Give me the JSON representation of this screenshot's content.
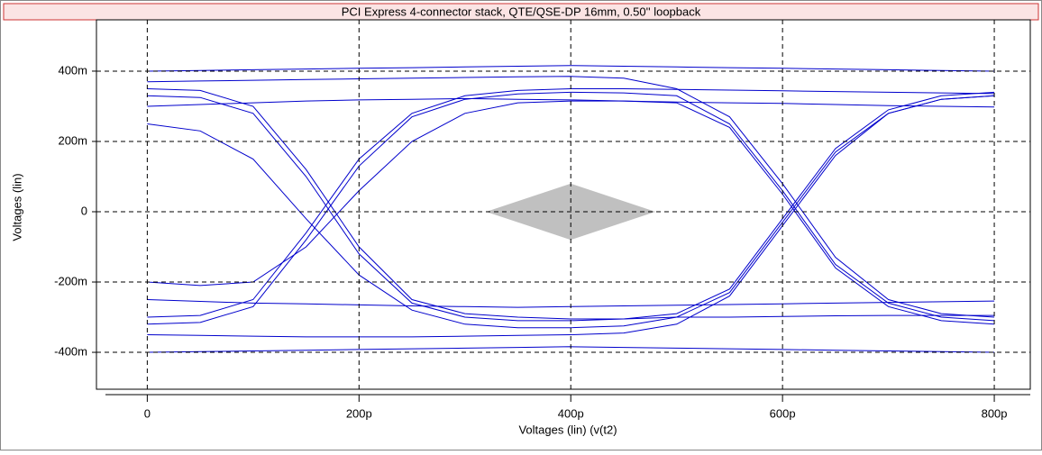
{
  "chart_data": {
    "type": "eye",
    "title": "PCI Express 4-connector stack, QTE/QSE-DP 16mm, 0.50'' loopback",
    "x_label": "Voltages (lin) (v(t2)",
    "y_label": "Voltages (lin)",
    "xlim": [
      -48,
      834
    ],
    "ylim": [
      -505,
      546
    ],
    "xticks": [
      {
        "value": 0,
        "label": "0"
      },
      {
        "value": 200,
        "label": "200p"
      },
      {
        "value": 400,
        "label": "400p"
      },
      {
        "value": 600,
        "label": "600p"
      },
      {
        "value": 800,
        "label": "800p"
      }
    ],
    "yticks": [
      {
        "value": 400,
        "label": "400m"
      },
      {
        "value": 200,
        "label": "200m"
      },
      {
        "value": 0,
        "label": "0"
      },
      {
        "value": -200,
        "label": "-200m"
      },
      {
        "value": -400,
        "label": "-400m"
      }
    ],
    "grid": true,
    "x": [
      0,
      50,
      100,
      150,
      200,
      250,
      300,
      350,
      400,
      450,
      500,
      550,
      600,
      650,
      700,
      750,
      800
    ],
    "series": [
      {
        "color": "#0000cc",
        "values": [
          400,
          402,
          404,
          406,
          408,
          410,
          412,
          414,
          416,
          414,
          412,
          410,
          408,
          406,
          404,
          402,
          400
        ]
      },
      {
        "color": "#0000cc",
        "values": [
          300,
          305,
          310,
          315,
          318,
          320,
          322,
          320,
          318,
          315,
          312,
          310,
          308,
          305,
          302,
          300,
          298
        ]
      },
      {
        "color": "#0000cc",
        "values": [
          350,
          345,
          300,
          120,
          -100,
          -250,
          -290,
          -300,
          -305,
          -305,
          -300,
          -300,
          -298,
          -296,
          -295,
          -295,
          -295
        ]
      },
      {
        "color": "#0000cc",
        "values": [
          -300,
          -295,
          -250,
          -60,
          150,
          280,
          330,
          345,
          350,
          350,
          348,
          346,
          344,
          342,
          340,
          338,
          336
        ]
      },
      {
        "color": "#0000cc",
        "values": [
          330,
          325,
          280,
          100,
          -120,
          -260,
          -300,
          -310,
          -310,
          -305,
          -290,
          -220,
          -20,
          180,
          290,
          330,
          340
        ]
      },
      {
        "color": "#0000cc",
        "values": [
          -320,
          -315,
          -270,
          -80,
          130,
          270,
          320,
          335,
          340,
          338,
          330,
          250,
          60,
          -150,
          -260,
          -300,
          -310
        ]
      },
      {
        "color": "#0000cc",
        "values": [
          370,
          372,
          374,
          376,
          378,
          380,
          382,
          384,
          385,
          380,
          350,
          270,
          80,
          -130,
          -250,
          -290,
          -300
        ]
      },
      {
        "color": "#0000cc",
        "values": [
          -350,
          -352,
          -354,
          -356,
          -356,
          -356,
          -354,
          -352,
          -350,
          -345,
          -320,
          -240,
          -40,
          160,
          280,
          320,
          330
        ]
      },
      {
        "color": "#0000cc",
        "values": [
          -400,
          -398,
          -396,
          -394,
          -392,
          -390,
          -388,
          -386,
          -384,
          -386,
          -388,
          -390,
          -392,
          -394,
          -396,
          -398,
          -400
        ]
      },
      {
        "color": "#0000cc",
        "values": [
          -250,
          -255,
          -260,
          -262,
          -265,
          -268,
          -270,
          -272,
          -270,
          -268,
          -266,
          -264,
          -262,
          -260,
          -258,
          -256,
          -254
        ]
      },
      {
        "color": "#0000cc",
        "values": [
          250,
          230,
          150,
          -20,
          -180,
          -280,
          -320,
          -330,
          -330,
          -325,
          -300,
          -230,
          -30,
          170,
          280,
          320,
          330
        ]
      },
      {
        "color": "#0000cc",
        "values": [
          -200,
          -210,
          -200,
          -100,
          60,
          200,
          280,
          310,
          315,
          315,
          310,
          240,
          50,
          -160,
          -270,
          -310,
          -320
        ]
      }
    ],
    "mask": {
      "color": "#c0c0c0",
      "x": [
        320,
        400,
        480,
        400
      ],
      "y": [
        0,
        80,
        0,
        -80
      ]
    }
  }
}
